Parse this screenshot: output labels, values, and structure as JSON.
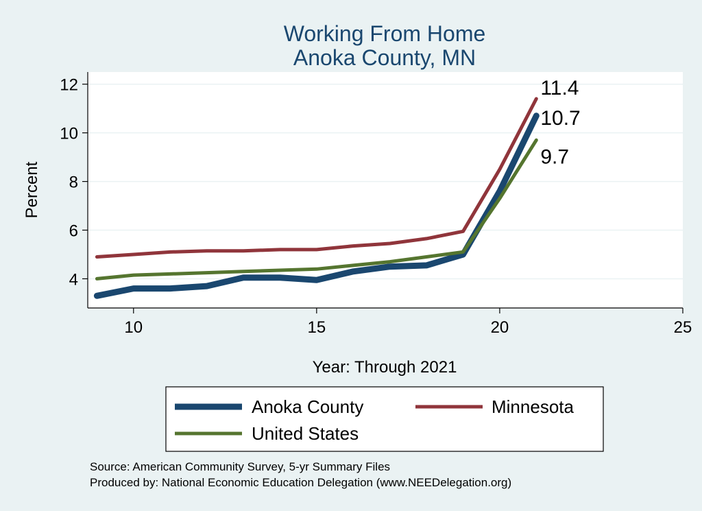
{
  "chart_data": {
    "type": "line",
    "title": [
      "Working From Home",
      "Anoka County, MN"
    ],
    "xlabel": "Year: Through 2021",
    "ylabel": "Percent",
    "xlim": [
      8.75,
      25
    ],
    "ylim": [
      2.8,
      12.5
    ],
    "xticks": [
      10,
      15,
      20,
      25
    ],
    "yticks": [
      4,
      6,
      8,
      10,
      12
    ],
    "grid": "horizontal",
    "legend": "bottom",
    "x": [
      9,
      10,
      11,
      12,
      13,
      14,
      15,
      16,
      17,
      18,
      19,
      20,
      21
    ],
    "series": [
      {
        "name": "Anoka County",
        "color": "#1a476f",
        "width": 9,
        "values": [
          3.3,
          3.6,
          3.6,
          3.7,
          4.05,
          4.05,
          3.95,
          4.3,
          4.5,
          4.55,
          5.0,
          7.6,
          10.7
        ],
        "end_label": "10.7"
      },
      {
        "name": "Minnesota",
        "color": "#90353b",
        "width": 5,
        "values": [
          4.9,
          5.0,
          5.1,
          5.15,
          5.15,
          5.2,
          5.2,
          5.35,
          5.45,
          5.65,
          5.95,
          8.5,
          11.4
        ],
        "end_label": "11.4"
      },
      {
        "name": "United States",
        "color": "#55752f",
        "width": 5,
        "values": [
          4.0,
          4.15,
          4.2,
          4.25,
          4.3,
          4.35,
          4.4,
          4.55,
          4.7,
          4.9,
          5.1,
          7.3,
          9.7
        ],
        "end_label": "9.7"
      }
    ]
  },
  "legend": {
    "items": [
      "Anoka County",
      "Minnesota",
      "United States"
    ]
  },
  "footer": {
    "source": "Source: American Community Survey, 5-yr Summary Files",
    "produced_by": "Produced by: National Economic Education Delegation (www.NEEDelegation.org)"
  }
}
